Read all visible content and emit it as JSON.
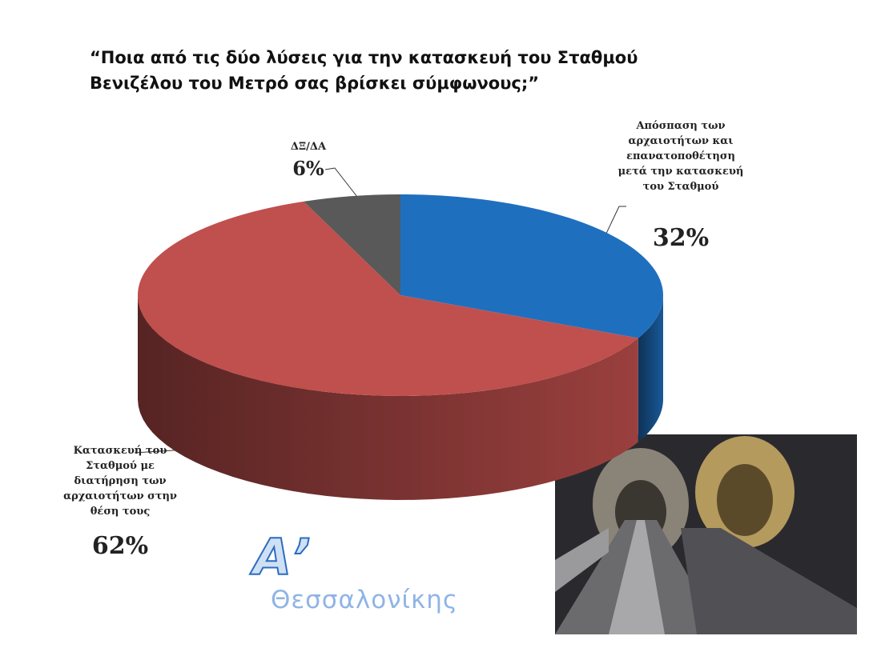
{
  "chart_data": {
    "type": "pie",
    "title": "“Ποια από τις δύο λύσεις για την κατασκευή του Σταθμού Βενιζέλου του Μετρό σας βρίσκει σύμφωνους;”",
    "categories": [
      "Απόσπαση των αρχαιοτήτων και επανατοποθέτηση μετά την κατασκευή του Σταθμού",
      "Κατασκευή του Σταθμού με διατήρηση των αρχαιοτήτων στην θέση τους",
      "ΔΞ/ΔΑ"
    ],
    "values": [
      32,
      62,
      6
    ],
    "value_labels": [
      "32%",
      "62%",
      "6%"
    ],
    "colors": [
      "#1f6fbf",
      "#c0504d",
      "#595959"
    ]
  },
  "logo": {
    "mark": "Α’",
    "name": "Θεσσαλονίκης"
  }
}
